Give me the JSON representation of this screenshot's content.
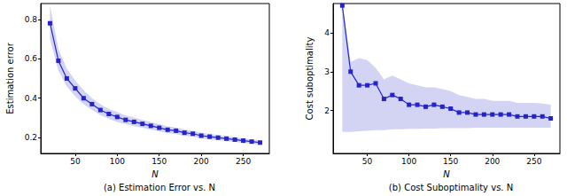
{
  "chart_data": [
    {
      "type": "line",
      "caption": "(a) Estimation Error vs. N",
      "x_label": "N",
      "y_label": "Estimation error",
      "color": "#2424c8",
      "marker": "square",
      "x": [
        20,
        30,
        40,
        50,
        60,
        70,
        80,
        90,
        100,
        110,
        120,
        130,
        140,
        150,
        160,
        170,
        180,
        190,
        200,
        210,
        220,
        230,
        240,
        250,
        260,
        270
      ],
      "values": [
        0.78,
        0.59,
        0.5,
        0.45,
        0.4,
        0.37,
        0.34,
        0.32,
        0.305,
        0.29,
        0.28,
        0.27,
        0.26,
        0.25,
        0.24,
        0.235,
        0.225,
        0.22,
        0.21,
        0.205,
        0.2,
        0.195,
        0.19,
        0.185,
        0.18,
        0.175
      ],
      "band_lower": [
        0.7,
        0.54,
        0.46,
        0.41,
        0.37,
        0.34,
        0.315,
        0.295,
        0.28,
        0.268,
        0.258,
        0.25,
        0.24,
        0.232,
        0.223,
        0.218,
        0.209,
        0.205,
        0.196,
        0.191,
        0.187,
        0.182,
        0.178,
        0.173,
        0.169,
        0.164
      ],
      "band_upper": [
        0.87,
        0.65,
        0.55,
        0.49,
        0.44,
        0.4,
        0.37,
        0.345,
        0.33,
        0.312,
        0.302,
        0.29,
        0.28,
        0.268,
        0.257,
        0.252,
        0.241,
        0.235,
        0.224,
        0.219,
        0.213,
        0.208,
        0.202,
        0.197,
        0.191,
        0.186
      ],
      "xlim": [
        9,
        281
      ],
      "ylim": [
        0.12,
        0.88
      ],
      "xticks": [
        50,
        100,
        150,
        200,
        250
      ],
      "yticks": [
        0.2,
        0.4,
        0.6,
        0.8
      ],
      "grid": false
    },
    {
      "type": "line",
      "caption": "(b) Cost Suboptimality vs. N",
      "x_label": "N",
      "y_label": "Cost suboptimality",
      "color": "#2424c8",
      "marker": "square",
      "x": [
        20,
        30,
        40,
        50,
        60,
        70,
        80,
        90,
        100,
        110,
        120,
        130,
        140,
        150,
        160,
        170,
        180,
        190,
        200,
        210,
        220,
        230,
        240,
        250,
        260,
        270
      ],
      "values": [
        4.7,
        3.0,
        2.65,
        2.65,
        2.7,
        2.3,
        2.4,
        2.3,
        2.15,
        2.15,
        2.1,
        2.15,
        2.1,
        2.05,
        1.95,
        1.95,
        1.9,
        1.9,
        1.9,
        1.9,
        1.9,
        1.85,
        1.85,
        1.85,
        1.85,
        1.8
      ],
      "band_lower": [
        1.45,
        1.45,
        1.47,
        1.48,
        1.5,
        1.5,
        1.52,
        1.52,
        1.53,
        1.53,
        1.54,
        1.54,
        1.55,
        1.55,
        1.55,
        1.55,
        1.56,
        1.56,
        1.56,
        1.56,
        1.56,
        1.56,
        1.56,
        1.56,
        1.56,
        1.56
      ],
      "band_upper": [
        4.75,
        3.25,
        3.35,
        3.3,
        3.1,
        2.8,
        2.9,
        2.8,
        2.7,
        2.65,
        2.6,
        2.6,
        2.55,
        2.5,
        2.4,
        2.35,
        2.3,
        2.3,
        2.25,
        2.25,
        2.25,
        2.2,
        2.2,
        2.2,
        2.18,
        2.15
      ],
      "xlim": [
        9,
        281
      ],
      "ylim": [
        0.9,
        4.75
      ],
      "xticks": [
        50,
        100,
        150,
        200,
        250
      ],
      "yticks": [
        2,
        3,
        4
      ],
      "grid": false
    }
  ]
}
